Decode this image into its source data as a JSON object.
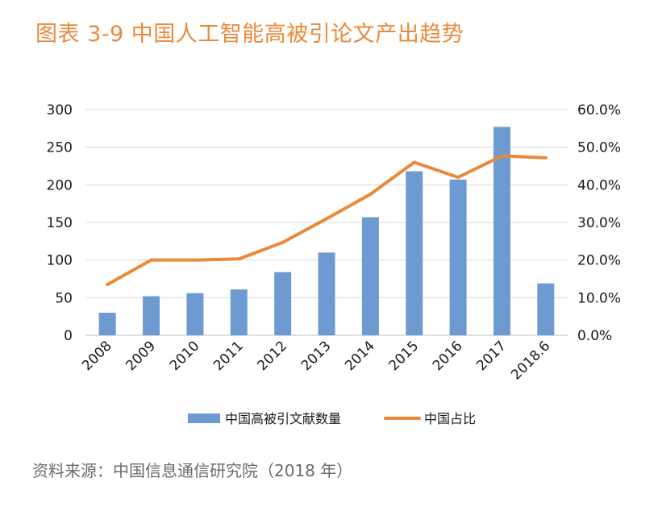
{
  "title": "图表 3-9 中国人工智能高被引论文产出趋势",
  "source": "资料来源：中国信息通信研究院（2018 年）",
  "chart_data": {
    "type": "bar",
    "categories": [
      "2008",
      "2009",
      "2010",
      "2011",
      "2012",
      "2013",
      "2014",
      "2015",
      "2016",
      "2017",
      "2018.6"
    ],
    "series": [
      {
        "name": "中国高被引文献数量",
        "type": "bar",
        "axis": "left",
        "color": "#6d9bd1",
        "values": [
          30,
          52,
          56,
          61,
          84,
          110,
          157,
          218,
          207,
          277,
          69
        ]
      },
      {
        "name": "中国占比",
        "type": "line",
        "axis": "right",
        "color": "#e98a3b",
        "values": [
          13.5,
          20.0,
          20.0,
          20.3,
          24.7,
          31.0,
          37.5,
          46.0,
          42.0,
          47.7,
          47.2
        ]
      }
    ],
    "ylim": [
      0,
      300
    ],
    "yticks": [
      "0",
      "50",
      "100",
      "150",
      "200",
      "250",
      "300"
    ],
    "y2lim": [
      0,
      60
    ],
    "y2ticks": [
      "0.0%",
      "10.0%",
      "20.0%",
      "30.0%",
      "40.0%",
      "50.0%",
      "60.0%"
    ],
    "grid": true,
    "legend_position": "bottom"
  }
}
